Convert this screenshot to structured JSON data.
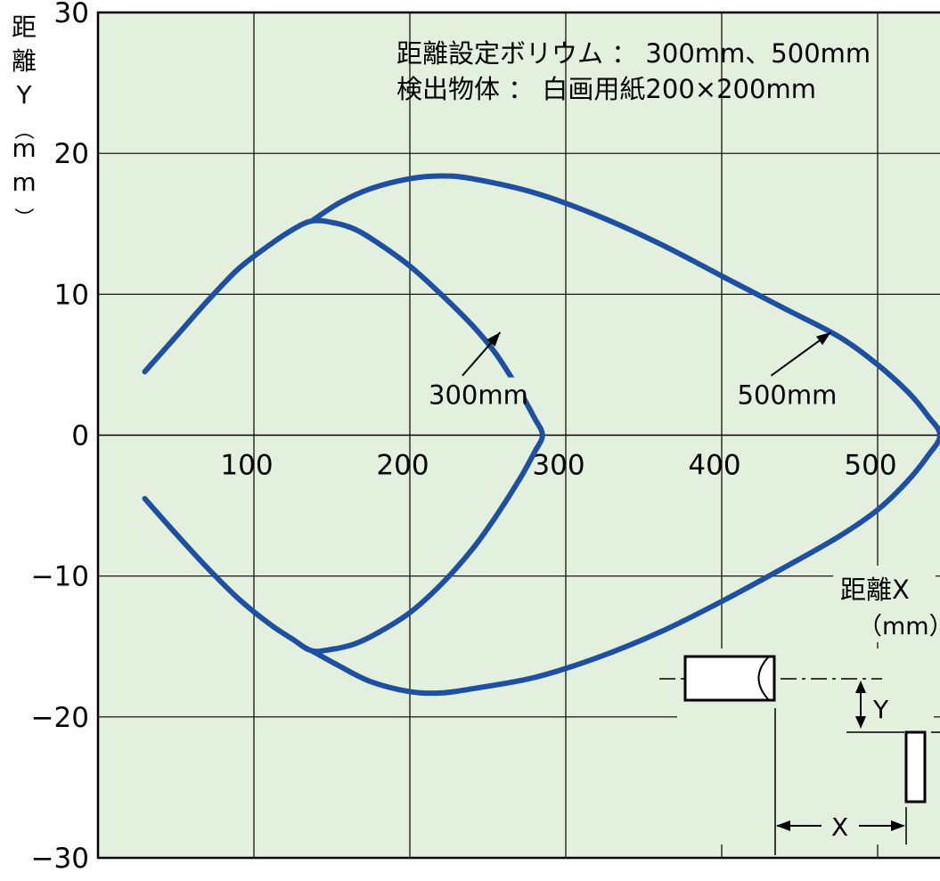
{
  "chart_data": {
    "type": "line",
    "title_lines": [
      "距離設定ボリウム ： 300mm、500mm",
      "検出物体 ： 白画用紙200×200mm"
    ],
    "ylabel": "距離Y（mm）",
    "xlabel": "距離X（mm）",
    "xlim": [
      0,
      540
    ],
    "ylim": [
      -30,
      30
    ],
    "x_ticks": [
      100,
      200,
      300,
      400,
      500
    ],
    "y_ticks": [
      30,
      20,
      10,
      0,
      -10,
      -20,
      -30
    ],
    "x_tick_labels": [
      "100",
      "200",
      "300",
      "400",
      "500"
    ],
    "y_tick_labels": [
      "30",
      "20",
      "10",
      "0",
      "−10",
      "−20",
      "−30"
    ],
    "grid": true,
    "background_color": "#e2f0dd",
    "line_color": "#1f4fa0",
    "series": [
      {
        "name": "300mm",
        "points": [
          [
            30,
            4.5
          ],
          [
            50,
            7
          ],
          [
            70,
            9.5
          ],
          [
            90,
            11.8
          ],
          [
            110,
            13.5
          ],
          [
            125,
            14.6
          ],
          [
            137,
            15.2
          ],
          [
            150,
            15.1
          ],
          [
            165,
            14.6
          ],
          [
            180,
            13.6
          ],
          [
            200,
            12.0
          ],
          [
            220,
            10.0
          ],
          [
            240,
            7.8
          ],
          [
            255,
            5.8
          ],
          [
            270,
            3.2
          ],
          [
            280,
            1.2
          ],
          [
            285,
            0
          ],
          [
            280,
            -1.2
          ],
          [
            270,
            -3.2
          ],
          [
            255,
            -5.8
          ],
          [
            240,
            -8.1
          ],
          [
            220,
            -10.6
          ],
          [
            200,
            -12.6
          ],
          [
            180,
            -14.0
          ],
          [
            165,
            -14.8
          ],
          [
            150,
            -15.2
          ],
          [
            137,
            -15.3
          ],
          [
            125,
            -14.5
          ],
          [
            110,
            -13.4
          ],
          [
            90,
            -11.6
          ],
          [
            70,
            -9.4
          ],
          [
            50,
            -7
          ],
          [
            30,
            -4.5
          ]
        ]
      },
      {
        "name": "500mm",
        "points": [
          [
            137,
            15.2
          ],
          [
            155,
            16.5
          ],
          [
            175,
            17.5
          ],
          [
            200,
            18.2
          ],
          [
            220,
            18.4
          ],
          [
            240,
            18.2
          ],
          [
            280,
            17.2
          ],
          [
            320,
            15.6
          ],
          [
            360,
            13.6
          ],
          [
            400,
            11.3
          ],
          [
            440,
            9.0
          ],
          [
            475,
            7.0
          ],
          [
            500,
            5.0
          ],
          [
            520,
            3.0
          ],
          [
            532,
            1.4
          ],
          [
            540,
            0
          ],
          [
            532,
            -1.5
          ],
          [
            518,
            -3.4
          ],
          [
            500,
            -5.3
          ],
          [
            475,
            -7.2
          ],
          [
            440,
            -9.4
          ],
          [
            400,
            -11.8
          ],
          [
            360,
            -14.0
          ],
          [
            320,
            -15.8
          ],
          [
            280,
            -17.2
          ],
          [
            240,
            -18.0
          ],
          [
            220,
            -18.3
          ],
          [
            200,
            -18.2
          ],
          [
            175,
            -17.5
          ],
          [
            155,
            -16.4
          ],
          [
            137,
            -15.3
          ]
        ]
      }
    ],
    "annotations": [
      {
        "text": "300mm",
        "x": 212,
        "y": 2.2,
        "arrow_to": [
          258,
          7.3
        ]
      },
      {
        "text": "500mm",
        "x": 410,
        "y": 2.2,
        "arrow_to": [
          470,
          7.3
        ]
      }
    ],
    "inset_labels": {
      "y": "Y",
      "x": "X"
    }
  }
}
